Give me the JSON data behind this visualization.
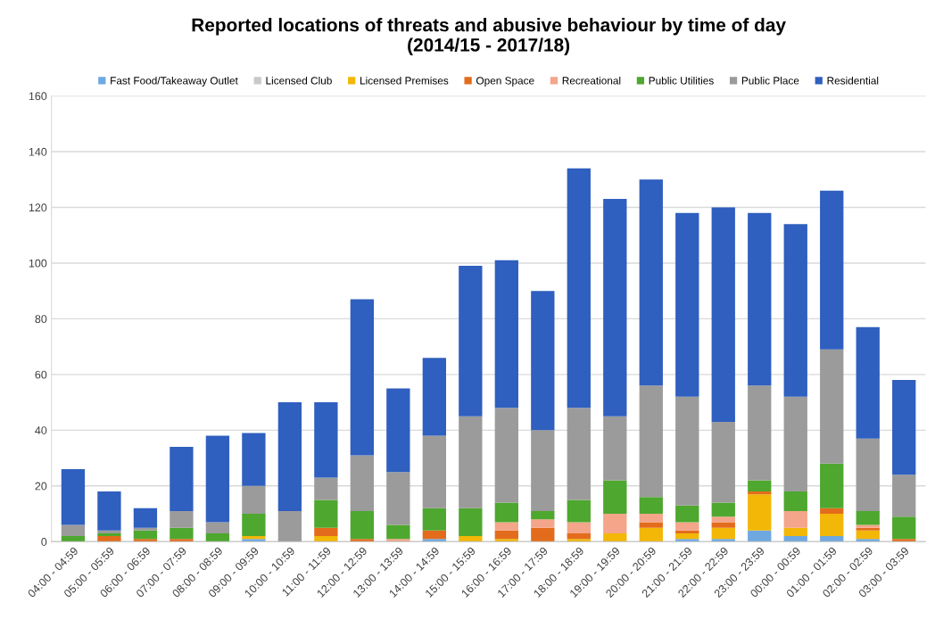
{
  "chart_data": {
    "type": "bar",
    "stacked": true,
    "title": "Reported locations of threats and abusive behaviour by time of day\n(2014/15 - 2017/18)",
    "categories": [
      "04:00 - 04:59",
      "05:00 - 05:59",
      "06:00 - 06:59",
      "07:00 - 07:59",
      "08:00 - 08:59",
      "09:00 - 09:59",
      "10:00 - 10:59",
      "11:00 - 11:59",
      "12:00 - 12:59",
      "13:00 - 13:59",
      "14:00 - 14:59",
      "15:00 - 15:59",
      "16:00 - 16:59",
      "17:00 - 17:59",
      "18:00 - 18:59",
      "19:00 - 19:59",
      "20:00 - 20:59",
      "21:00 - 21:59",
      "22:00 - 22:59",
      "23:00 - 23:59",
      "00:00 - 00:59",
      "01:00 - 01:59",
      "02:00 - 02:59",
      "03:00 - 03:59"
    ],
    "series": [
      {
        "name": "Fast Food/Takeaway Outlet",
        "color": "#6fa8e0",
        "values": [
          0,
          0,
          0,
          0,
          0,
          1,
          0,
          0,
          0,
          0,
          1,
          0,
          0,
          0,
          0,
          0,
          0,
          1,
          1,
          4,
          2,
          2,
          1,
          0
        ]
      },
      {
        "name": "Licensed Club",
        "color": "#c9c9c9",
        "values": [
          0,
          0,
          0,
          0,
          0,
          0,
          0,
          0,
          0,
          0,
          0,
          0,
          0,
          0,
          0,
          0,
          0,
          0,
          0,
          0,
          0,
          0,
          0,
          0
        ]
      },
      {
        "name": "Licensed Premises",
        "color": "#f2b707",
        "values": [
          0,
          0,
          0,
          0,
          0,
          1,
          0,
          2,
          0,
          0,
          0,
          2,
          1,
          0,
          1,
          3,
          5,
          2,
          4,
          13,
          3,
          8,
          3,
          0
        ]
      },
      {
        "name": "Open Space",
        "color": "#e36c1c",
        "values": [
          0,
          2,
          1,
          1,
          0,
          0,
          0,
          3,
          1,
          0,
          3,
          0,
          3,
          5,
          2,
          0,
          2,
          1,
          2,
          1,
          0,
          2,
          1,
          1
        ]
      },
      {
        "name": "Recreational",
        "color": "#f4a58a",
        "values": [
          0,
          0,
          0,
          0,
          0,
          0,
          0,
          0,
          0,
          1,
          0,
          0,
          3,
          3,
          4,
          7,
          3,
          3,
          2,
          0,
          6,
          0,
          1,
          0
        ]
      },
      {
        "name": "Public Utilities",
        "color": "#4ea72e",
        "values": [
          2,
          1,
          3,
          4,
          3,
          8,
          0,
          10,
          10,
          5,
          8,
          10,
          7,
          3,
          8,
          12,
          6,
          6,
          5,
          4,
          7,
          16,
          5,
          8
        ]
      },
      {
        "name": "Public Place",
        "color": "#9b9b9b",
        "values": [
          4,
          1,
          1,
          6,
          4,
          10,
          11,
          8,
          20,
          19,
          26,
          33,
          34,
          29,
          33,
          23,
          40,
          39,
          29,
          34,
          34,
          41,
          26,
          15
        ]
      },
      {
        "name": "Residential",
        "color": "#2f5fbf",
        "values": [
          20,
          14,
          7,
          23,
          31,
          19,
          39,
          27,
          56,
          30,
          28,
          54,
          53,
          50,
          86,
          78,
          74,
          66,
          77,
          62,
          62,
          57,
          40,
          34
        ]
      }
    ],
    "ylim": [
      0,
      160
    ],
    "yticks": [
      0,
      20,
      40,
      60,
      80,
      100,
      120,
      140,
      160
    ],
    "grid": "y",
    "legend": "top"
  }
}
